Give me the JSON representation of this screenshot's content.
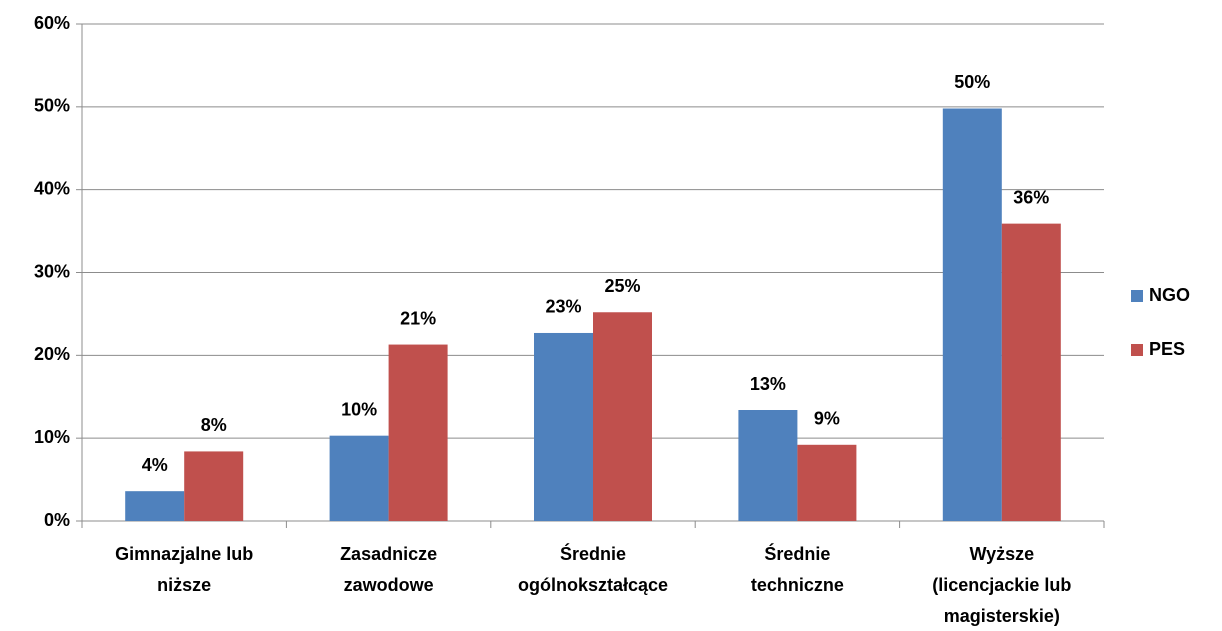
{
  "chart_data": {
    "type": "bar",
    "categories": [
      [
        "Gimnazjalne lub",
        "niższe"
      ],
      [
        "Zasadnicze",
        "zawodowe"
      ],
      [
        "Średnie",
        "ogólnokształcące"
      ],
      [
        "Średnie",
        "techniczne"
      ],
      [
        "Wyższe",
        "(licencjackie lub",
        "magisterskie)"
      ]
    ],
    "series": [
      {
        "name": "NGO",
        "color": "#4f81bd",
        "values": [
          3.6,
          10.3,
          22.7,
          13.4,
          49.8
        ],
        "value_labels": [
          "4%",
          "10%",
          "23%",
          "13%",
          "50%"
        ]
      },
      {
        "name": "PES",
        "color": "#c0504d",
        "values": [
          8.4,
          21.3,
          25.2,
          9.2,
          35.9
        ],
        "value_labels": [
          "8%",
          "21%",
          "25%",
          "9%",
          "36%"
        ]
      }
    ],
    "ylim": [
      0,
      60
    ],
    "yticks": [
      {
        "value": 0,
        "label": "0%"
      },
      {
        "value": 10,
        "label": "10%"
      },
      {
        "value": 20,
        "label": "20%"
      },
      {
        "value": 30,
        "label": "30%"
      },
      {
        "value": 40,
        "label": "40%"
      },
      {
        "value": 50,
        "label": "50%"
      },
      {
        "value": 60,
        "label": "60%"
      }
    ],
    "grid": true,
    "legend": "right"
  }
}
